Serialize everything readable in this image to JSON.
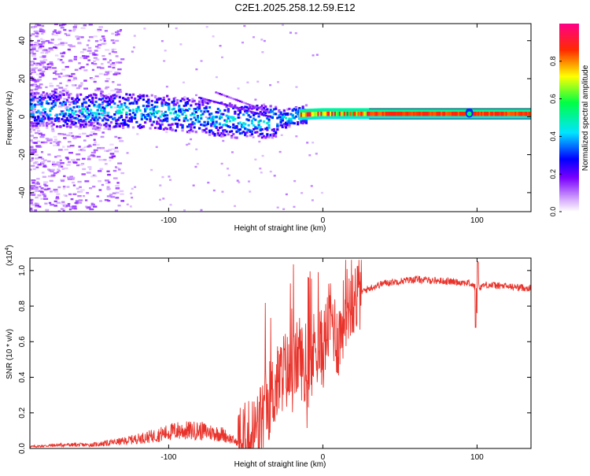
{
  "title": "C2E1.2025.258.12.59.E12",
  "colors": {
    "snr_line": "#e8322a",
    "frame": "#000000",
    "spectrogram_bg": "#ffffff"
  },
  "chart_data": [
    {
      "type": "heatmap",
      "name": "spectrogram",
      "xlabel": "Height of straight line (km)",
      "ylabel": "Frequency (Hz)",
      "xlim": [
        -190,
        135
      ],
      "ylim": [
        -50,
        49
      ],
      "xticks": [
        -100,
        0,
        100
      ],
      "yticks": [
        -40,
        -20,
        0,
        20,
        40
      ],
      "colorbar": {
        "label": "Normalized spectral amplitude",
        "range": [
          0,
          1
        ],
        "ticks": [
          "0.0",
          "0.2",
          "0.4",
          "0.6",
          "0.8"
        ],
        "tick_values": [
          0.0,
          0.2,
          0.4,
          0.6,
          0.8
        ],
        "colormap": [
          "#ffffff",
          "#d8b0ff",
          "#7a00ff",
          "#0000ff",
          "#00e5ff",
          "#00ff44",
          "#ffff00",
          "#ff2a00",
          "#ff0088"
        ]
      },
      "ridge": {
        "description_points_x": [
          -185,
          -150,
          -120,
          -100,
          -80,
          -60,
          -45,
          -30,
          -15,
          0,
          20,
          40,
          95,
          135
        ],
        "description_points_freq": [
          4,
          3,
          3,
          2,
          0,
          -2,
          -3,
          -2,
          1,
          1.5,
          1.5,
          1.5,
          1.5,
          1.5
        ],
        "peak_amplitude_x": 95
      }
    },
    {
      "type": "line",
      "name": "snr",
      "xlabel": "Height of straight line (km)",
      "ylabel": "SNR (10 * v/v)",
      "yscale_label": "(x10",
      "yscale_exponent": "4",
      "yscale_suffix": ")",
      "xlim": [
        -190,
        135
      ],
      "ylim": [
        0,
        1.07
      ],
      "xticks": [
        -100,
        0,
        100
      ],
      "yticks": [
        "0.0",
        "0.2",
        "0.4",
        "0.6",
        "0.8",
        "1.0"
      ],
      "ytick_values": [
        0.0,
        0.2,
        0.4,
        0.6,
        0.8,
        1.0
      ],
      "series": [
        {
          "name": "SNR",
          "x": [
            -190,
            -170,
            -150,
            -130,
            -110,
            -95,
            -80,
            -65,
            -55,
            -48,
            -42,
            -36,
            -30,
            -25,
            -20,
            -15,
            -10,
            -5,
            0,
            5,
            10,
            15,
            20,
            25,
            30,
            40,
            60,
            80,
            95,
            100,
            105,
            120,
            135
          ],
          "y": [
            0.01,
            0.02,
            0.02,
            0.04,
            0.07,
            0.1,
            0.1,
            0.08,
            0.03,
            0.05,
            0.12,
            0.25,
            0.35,
            0.45,
            0.4,
            0.55,
            0.32,
            0.6,
            0.55,
            0.75,
            0.6,
            0.8,
            0.85,
            0.88,
            0.9,
            0.93,
            0.95,
            0.94,
            0.93,
            0.9,
            0.92,
            0.91,
            0.9
          ]
        }
      ],
      "annotations": [
        {
          "x": 100,
          "y": 1.05,
          "text": ""
        },
        {
          "x": 98,
          "y": 0.68,
          "text": ""
        }
      ]
    }
  ]
}
